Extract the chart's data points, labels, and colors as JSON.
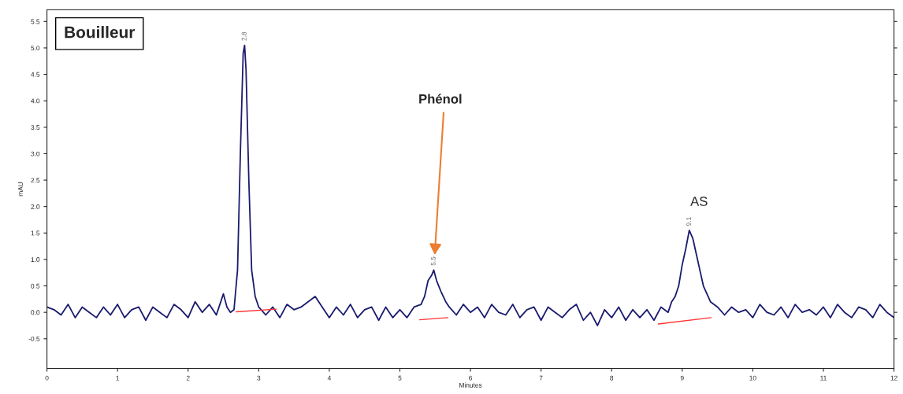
{
  "chart_data": {
    "type": "line",
    "xlabel": "Minutes",
    "ylabel": "mAU",
    "xlim": [
      0,
      12
    ],
    "ylim": [
      -1.06,
      5.72
    ],
    "xticks": [
      0,
      1,
      2,
      3,
      4,
      5,
      6,
      7,
      8,
      9,
      10,
      11,
      12
    ],
    "yticks": [
      -0.5,
      {
        "value": 0,
        "label": "0.0"
      },
      0.5,
      {
        "value": 1,
        "label": "1.0"
      },
      1.5,
      {
        "value": 2,
        "label": "2.0"
      },
      2.5,
      {
        "value": 3,
        "label": "3.0"
      },
      3.5,
      {
        "value": 4,
        "label": "4.0"
      },
      4.5,
      {
        "value": 5,
        "label": "5.0"
      },
      5.5
    ],
    "grid": false,
    "legend": false,
    "marker": "none",
    "line_style": "solid",
    "series": [
      {
        "color": "#1a1a6e",
        "x": [
          0,
          0.1,
          0.2,
          0.3,
          0.4,
          0.5,
          0.6,
          0.7,
          0.8,
          0.9,
          1.0,
          1.1,
          1.2,
          1.3,
          1.4,
          1.5,
          1.6,
          1.7,
          1.8,
          1.9,
          2.0,
          2.1,
          2.2,
          2.3,
          2.4,
          2.5,
          2.55,
          2.6,
          2.65,
          2.7,
          2.74,
          2.78,
          2.8,
          2.82,
          2.86,
          2.9,
          2.95,
          3.0,
          3.1,
          3.2,
          3.3,
          3.4,
          3.5,
          3.6,
          3.7,
          3.8,
          3.9,
          4.0,
          4.1,
          4.2,
          4.3,
          4.4,
          4.5,
          4.6,
          4.7,
          4.8,
          4.9,
          5.0,
          5.1,
          5.2,
          5.3,
          5.35,
          5.4,
          5.45,
          5.48,
          5.52,
          5.58,
          5.65,
          5.7,
          5.8,
          5.9,
          6.0,
          6.1,
          6.2,
          6.3,
          6.4,
          6.5,
          6.6,
          6.7,
          6.8,
          6.9,
          7.0,
          7.1,
          7.2,
          7.3,
          7.4,
          7.5,
          7.6,
          7.7,
          7.8,
          7.9,
          8.0,
          8.1,
          8.2,
          8.3,
          8.4,
          8.5,
          8.6,
          8.7,
          8.8,
          8.85,
          8.9,
          8.95,
          9.0,
          9.05,
          9.1,
          9.15,
          9.2,
          9.25,
          9.3,
          9.4,
          9.5,
          9.6,
          9.7,
          9.8,
          9.9,
          10.0,
          10.1,
          10.2,
          10.3,
          10.4,
          10.5,
          10.6,
          10.7,
          10.8,
          10.9,
          11.0,
          11.1,
          11.2,
          11.3,
          11.4,
          11.5,
          11.6,
          11.7,
          11.8,
          11.9,
          12.0
        ],
        "values": [
          0.1,
          0.05,
          -0.05,
          0.15,
          -0.1,
          0.1,
          0.0,
          -0.1,
          0.1,
          -0.05,
          0.15,
          -0.1,
          0.05,
          0.1,
          -0.15,
          0.1,
          0.0,
          -0.1,
          0.15,
          0.05,
          -0.1,
          0.2,
          0.0,
          0.15,
          -0.05,
          0.35,
          0.1,
          0.0,
          0.05,
          0.8,
          3.0,
          4.9,
          5.05,
          4.6,
          2.5,
          0.8,
          0.3,
          0.1,
          -0.05,
          0.1,
          -0.1,
          0.15,
          0.05,
          0.1,
          0.2,
          0.3,
          0.1,
          -0.1,
          0.1,
          -0.05,
          0.15,
          -0.1,
          0.05,
          0.1,
          -0.15,
          0.1,
          -0.1,
          0.05,
          -0.1,
          0.1,
          0.15,
          0.3,
          0.6,
          0.7,
          0.8,
          0.6,
          0.4,
          0.2,
          0.1,
          -0.05,
          0.15,
          0.0,
          0.1,
          -0.1,
          0.15,
          0.0,
          -0.05,
          0.15,
          -0.1,
          0.05,
          0.1,
          -0.15,
          0.1,
          0.0,
          -0.1,
          0.05,
          0.15,
          -0.15,
          0.0,
          -0.25,
          0.05,
          -0.1,
          0.1,
          -0.15,
          0.05,
          -0.1,
          0.05,
          -0.15,
          0.1,
          0.0,
          0.2,
          0.3,
          0.5,
          0.9,
          1.2,
          1.55,
          1.4,
          1.1,
          0.8,
          0.5,
          0.2,
          0.1,
          -0.05,
          0.1,
          0.0,
          0.05,
          -0.1,
          0.15,
          0.0,
          -0.05,
          0.1,
          -0.1,
          0.15,
          0.0,
          0.05,
          -0.05,
          0.1,
          -0.1,
          0.15,
          0.0,
          -0.1,
          0.1,
          0.05,
          -0.1,
          0.15,
          0.0,
          -0.1
        ]
      },
      {
        "color": "#ff3333",
        "x": [
          2.68,
          3.25
        ],
        "values": [
          0.01,
          0.06
        ]
      },
      {
        "color": "#ff3333",
        "x": [
          5.28,
          5.68
        ],
        "values": [
          -0.14,
          -0.1
        ]
      },
      {
        "color": "#ff3333",
        "x": [
          8.66,
          9.41
        ],
        "values": [
          -0.22,
          -0.1
        ]
      }
    ],
    "annotations": [
      "Bouilleur",
      {
        "text": "2.8",
        "x": 2.8,
        "y": 5.05
      },
      {
        "text": "5.5",
        "x": 5.48,
        "y": 0.8
      },
      {
        "text": "9.1",
        "x": 9.1,
        "y": 1.55
      },
      "Phénol",
      {
        "text": "AS",
        "x": 9.1,
        "y": 1.55
      }
    ]
  }
}
